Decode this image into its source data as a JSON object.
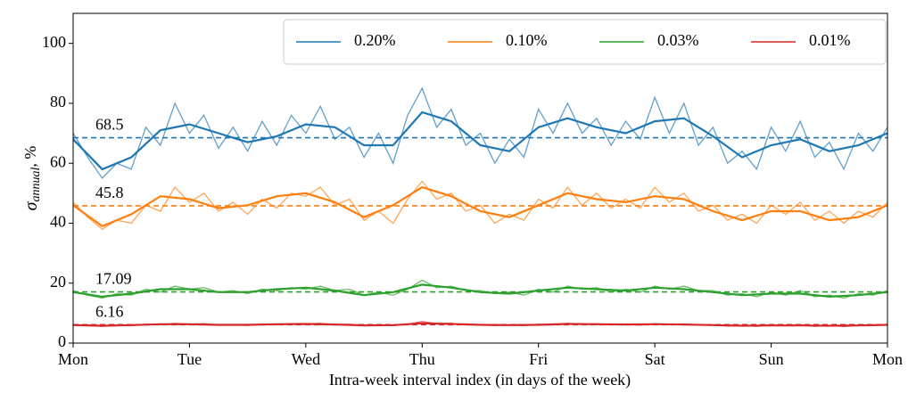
{
  "chart_data": {
    "type": "line",
    "x_label": "Intra-week interval index (in days of the week)",
    "y_label": {
      "symbol": "σ",
      "subscript": "annual",
      "unit": ", %"
    },
    "xlim": [
      0,
      7
    ],
    "xticks": [
      {
        "value": 0,
        "label": "Mon"
      },
      {
        "value": 1,
        "label": "Tue"
      },
      {
        "value": 2,
        "label": "Wed"
      },
      {
        "value": 3,
        "label": "Thu"
      },
      {
        "value": 4,
        "label": "Fri"
      },
      {
        "value": 5,
        "label": "Sat"
      },
      {
        "value": 6,
        "label": "Sun"
      },
      {
        "value": 7,
        "label": "Mon"
      }
    ],
    "ylim": [
      0,
      110
    ],
    "yticks": [
      0,
      20,
      40,
      60,
      80,
      100
    ],
    "legend": "upper right",
    "x": [
      0,
      0.125,
      0.25,
      0.375,
      0.5,
      0.625,
      0.75,
      0.875,
      1,
      1.125,
      1.25,
      1.375,
      1.5,
      1.625,
      1.75,
      1.875,
      2,
      2.125,
      2.25,
      2.375,
      2.5,
      2.625,
      2.75,
      2.875,
      3,
      3.125,
      3.25,
      3.375,
      3.5,
      3.625,
      3.75,
      3.875,
      4,
      4.125,
      4.25,
      4.375,
      4.5,
      4.625,
      4.75,
      4.875,
      5,
      5.125,
      5.25,
      5.375,
      5.5,
      5.625,
      5.75,
      5.875,
      6,
      6.125,
      6.25,
      6.375,
      6.5,
      6.625,
      6.75,
      6.875,
      7
    ],
    "smooth_x": [
      0,
      0.25,
      0.5,
      0.75,
      1,
      1.25,
      1.5,
      1.75,
      2,
      2.25,
      2.5,
      2.75,
      3,
      3.25,
      3.5,
      3.75,
      4,
      4.25,
      4.5,
      4.75,
      5,
      5.25,
      5.5,
      5.75,
      6,
      6.25,
      6.5,
      6.75,
      7
    ],
    "series": [
      {
        "name": "0.20%",
        "color": "#1f77b4",
        "mean": 68.5,
        "values": [
          70,
          62,
          55,
          60,
          58,
          72,
          66,
          80,
          70,
          76,
          65,
          72,
          64,
          74,
          66,
          76,
          70,
          79,
          68,
          72,
          62,
          70,
          60,
          76,
          85,
          72,
          78,
          66,
          70,
          60,
          68,
          62,
          78,
          70,
          80,
          70,
          75,
          66,
          74,
          68,
          82,
          70,
          80,
          66,
          72,
          60,
          64,
          58,
          72,
          64,
          74,
          62,
          67,
          58,
          70,
          64,
          72
        ],
        "smooth": [
          68,
          58,
          62,
          71,
          73,
          70,
          67,
          69,
          73,
          72,
          66,
          66,
          77,
          74,
          66,
          64,
          72,
          75,
          72,
          70,
          74,
          75,
          69,
          62,
          66,
          68,
          64,
          66,
          70
        ]
      },
      {
        "name": "0.10%",
        "color": "#ff7f0e",
        "mean": 45.8,
        "values": [
          47,
          42,
          38,
          41,
          40,
          46,
          44,
          52,
          47,
          50,
          44,
          47,
          43,
          48,
          45,
          50,
          49,
          52,
          46,
          48,
          41,
          44,
          40,
          48,
          54,
          48,
          50,
          44,
          46,
          40,
          43,
          41,
          48,
          45,
          52,
          46,
          50,
          45,
          48,
          45,
          52,
          47,
          50,
          44,
          46,
          41,
          43,
          40,
          46,
          43,
          47,
          41,
          44,
          40,
          44,
          42,
          47
        ],
        "smooth": [
          46,
          39,
          43,
          49,
          48,
          45,
          46,
          49,
          50,
          47,
          42,
          46,
          52,
          49,
          44,
          42,
          46,
          50,
          48,
          47,
          49,
          48,
          44,
          41,
          44,
          44,
          41,
          42,
          46
        ]
      },
      {
        "name": "0.03%",
        "color": "#2ca02c",
        "mean": 17.09,
        "values": [
          17.5,
          16,
          15,
          16.5,
          16,
          18,
          17,
          19,
          18,
          18.5,
          17,
          17.5,
          16.5,
          18,
          17.5,
          18.5,
          18,
          19,
          17.5,
          18,
          16,
          17,
          16,
          18,
          21,
          18.5,
          19,
          17.5,
          17.5,
          16.5,
          17,
          16,
          18,
          17,
          19,
          18,
          18.5,
          17,
          18,
          17,
          19,
          18,
          19,
          17.5,
          17.5,
          16,
          16.5,
          15.5,
          17,
          16,
          17.5,
          15.5,
          16,
          15,
          16.5,
          16,
          17.5
        ],
        "smooth": [
          17,
          15.5,
          16.5,
          18,
          18,
          17,
          17,
          18,
          18.5,
          17.5,
          16,
          17,
          19.5,
          18.5,
          17,
          16.5,
          17.5,
          18.5,
          18,
          17.5,
          18.5,
          18,
          17,
          16,
          16.5,
          16.5,
          15.5,
          16,
          17
        ]
      },
      {
        "name": "0.01%",
        "color": "#d62728",
        "mean": 6.16,
        "values": [
          6.2,
          5.8,
          5.6,
          5.9,
          5.8,
          6.3,
          6.1,
          6.6,
          6.3,
          6.5,
          6.0,
          6.2,
          5.9,
          6.4,
          6.1,
          6.5,
          6.4,
          6.6,
          6.1,
          6.3,
          5.8,
          6.1,
          5.8,
          6.3,
          7.2,
          6.5,
          6.6,
          6.1,
          6.2,
          5.8,
          6.0,
          5.8,
          6.3,
          6.1,
          6.6,
          6.2,
          6.5,
          6.1,
          6.3,
          6.0,
          6.5,
          6.2,
          6.4,
          6.0,
          6.1,
          5.7,
          5.9,
          5.6,
          6.1,
          5.8,
          6.2,
          5.6,
          5.9,
          5.5,
          6.0,
          5.8,
          6.2
        ],
        "smooth": [
          6,
          5.8,
          6,
          6.3,
          6.3,
          6.1,
          6.1,
          6.3,
          6.4,
          6.2,
          5.9,
          6,
          6.6,
          6.4,
          6.1,
          6,
          6.1,
          6.4,
          6.3,
          6.2,
          6.3,
          6.2,
          6,
          5.8,
          5.9,
          5.9,
          5.8,
          5.9,
          6.1
        ]
      }
    ]
  }
}
